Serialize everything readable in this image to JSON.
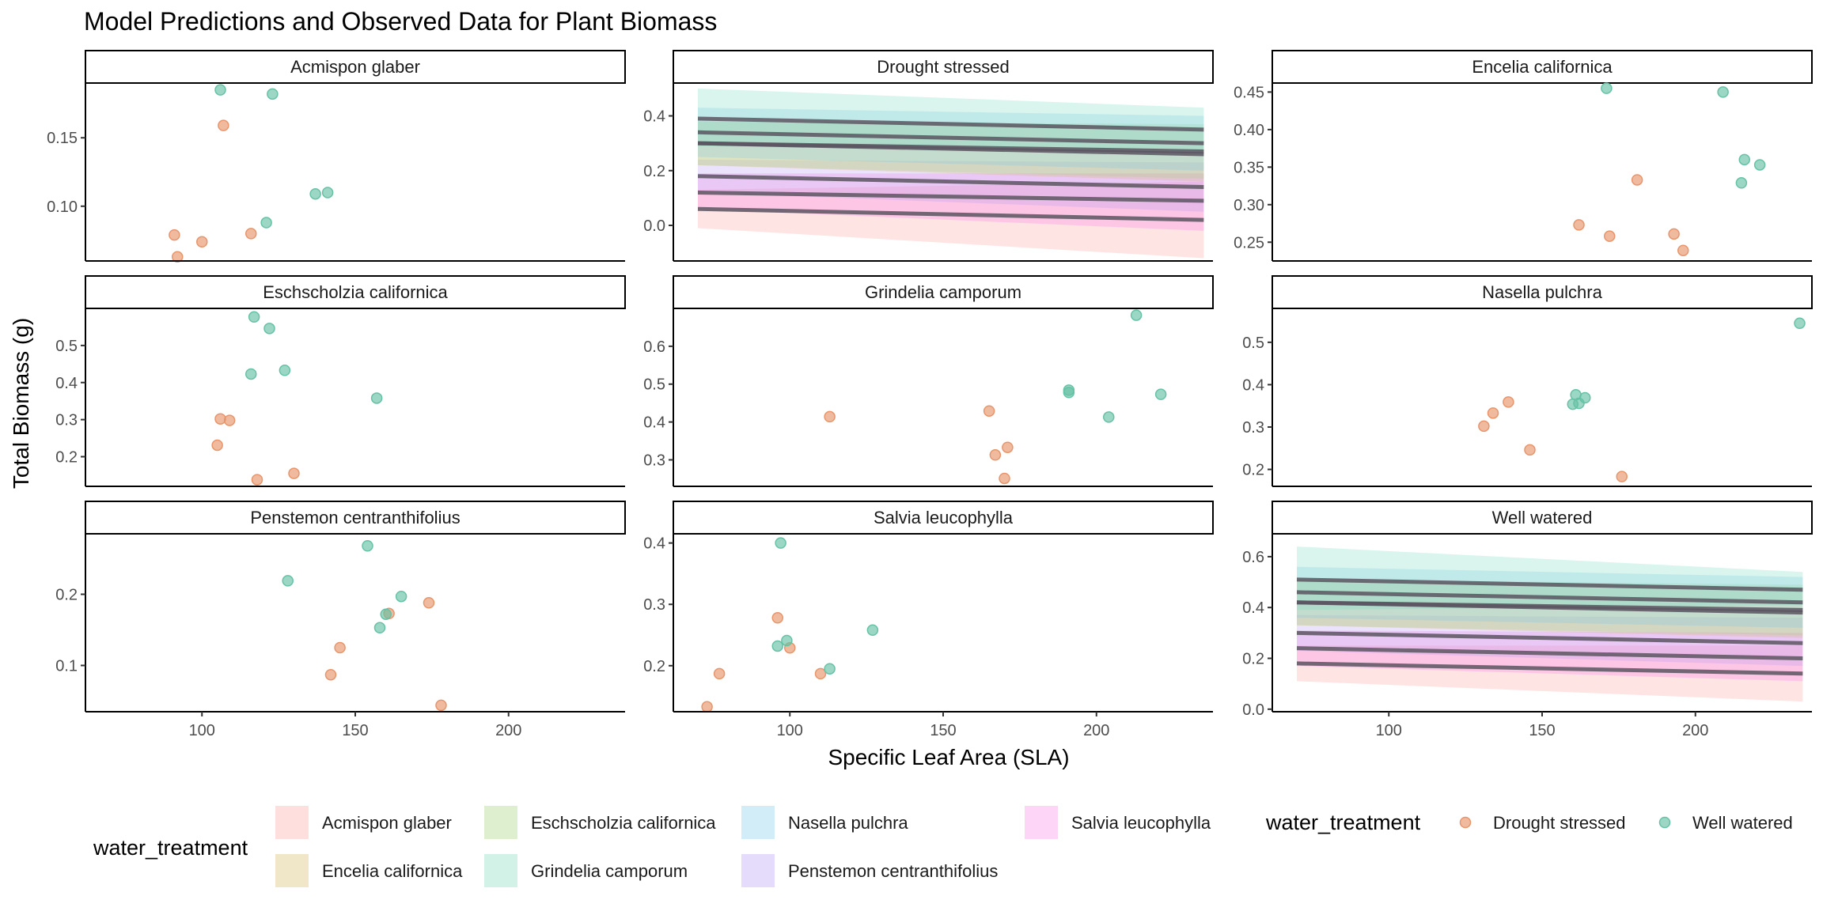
{
  "chart_data": {
    "type": "scatter",
    "title": "Model Predictions and Observed Data for Plant Biomass",
    "xlabel": "Specific Leaf Area (SLA)",
    "ylabel": "Total Biomass (g)",
    "xlim": [
      62,
      238
    ],
    "x_ticks": [
      100,
      150,
      200
    ],
    "grid": false,
    "colors": {
      "drought_point": "#E8956B",
      "well_point": "#66C2A5",
      "line": "#5a5560"
    },
    "facets": [
      {
        "label": "Acmispon glaber",
        "ylim": [
          0.06,
          0.19
        ],
        "y_ticks": [
          0.1,
          0.15
        ],
        "y_tick_labels": [
          "0.10",
          "0.15"
        ],
        "points": [
          {
            "g": "d",
            "x": 91,
            "y": 0.079
          },
          {
            "g": "d",
            "x": 92,
            "y": 0.063
          },
          {
            "g": "d",
            "x": 100,
            "y": 0.074
          },
          {
            "g": "d",
            "x": 107,
            "y": 0.159
          },
          {
            "g": "d",
            "x": 116,
            "y": 0.08
          },
          {
            "g": "w",
            "x": 106,
            "y": 0.185
          },
          {
            "g": "w",
            "x": 123,
            "y": 0.182
          },
          {
            "g": "w",
            "x": 121,
            "y": 0.088
          },
          {
            "g": "w",
            "x": 137,
            "y": 0.109
          },
          {
            "g": "w",
            "x": 141,
            "y": 0.11
          }
        ]
      },
      {
        "label": "Drought stressed",
        "ylim": [
          -0.13,
          0.52
        ],
        "y_ticks": [
          0.0,
          0.2,
          0.4
        ],
        "y_tick_labels": [
          "0.0",
          "0.2",
          "0.4"
        ],
        "x_range": [
          70,
          235
        ],
        "bands": [
          {
            "species": "Acmispon glaber",
            "fill": "#FF9E9E",
            "line": [
              0.06,
              0.02
            ],
            "lower": [
              -0.01,
              -0.12
            ],
            "upper": [
              0.13,
              0.16
            ]
          },
          {
            "species": "Salvia leucophylla",
            "fill": "#F97BE8",
            "line": [
              0.12,
              0.09
            ],
            "lower": [
              0.06,
              -0.02
            ],
            "upper": [
              0.19,
              0.19
            ]
          },
          {
            "species": "Penstemon centranthifolius",
            "fill": "#B79CF2",
            "line": [
              0.18,
              0.14
            ],
            "lower": [
              0.12,
              0.05
            ],
            "upper": [
              0.24,
              0.23
            ]
          },
          {
            "species": "Encelia californica",
            "fill": "#D4B876",
            "line": [
              0.3,
              0.26
            ],
            "lower": [
              0.22,
              0.16
            ],
            "upper": [
              0.38,
              0.36
            ]
          },
          {
            "species": "Eschscholzia californica",
            "fill": "#A8D58A",
            "line": [
              0.3,
              0.27
            ],
            "lower": [
              0.22,
              0.17
            ],
            "upper": [
              0.38,
              0.37
            ]
          },
          {
            "species": "Nasella pulchra",
            "fill": "#7FC9EE",
            "line": [
              0.34,
              0.3
            ],
            "lower": [
              0.25,
              0.2
            ],
            "upper": [
              0.43,
              0.4
            ]
          },
          {
            "species": "Grindelia camporum",
            "fill": "#7ADBC2",
            "line": [
              0.39,
              0.35
            ],
            "lower": [
              0.29,
              0.27
            ],
            "upper": [
              0.5,
              0.43
            ]
          }
        ]
      },
      {
        "label": "Encelia californica",
        "ylim": [
          0.225,
          0.462
        ],
        "y_ticks": [
          0.25,
          0.3,
          0.35,
          0.4,
          0.45
        ],
        "y_tick_labels": [
          "0.25",
          "0.30",
          "0.35",
          "0.40",
          "0.45"
        ],
        "points": [
          {
            "g": "d",
            "x": 162,
            "y": 0.273
          },
          {
            "g": "d",
            "x": 172,
            "y": 0.258
          },
          {
            "g": "d",
            "x": 181,
            "y": 0.333
          },
          {
            "g": "d",
            "x": 193,
            "y": 0.261
          },
          {
            "g": "d",
            "x": 196,
            "y": 0.239
          },
          {
            "g": "w",
            "x": 171,
            "y": 0.455
          },
          {
            "g": "w",
            "x": 209,
            "y": 0.45
          },
          {
            "g": "w",
            "x": 215,
            "y": 0.329
          },
          {
            "g": "w",
            "x": 216,
            "y": 0.36
          },
          {
            "g": "w",
            "x": 221,
            "y": 0.353
          }
        ]
      },
      {
        "label": "Eschscholzia californica",
        "ylim": [
          0.12,
          0.6
        ],
        "y_ticks": [
          0.2,
          0.3,
          0.4,
          0.5
        ],
        "y_tick_labels": [
          "0.2",
          "0.3",
          "0.4",
          "0.5"
        ],
        "points": [
          {
            "g": "d",
            "x": 105,
            "y": 0.231
          },
          {
            "g": "d",
            "x": 106,
            "y": 0.302
          },
          {
            "g": "d",
            "x": 109,
            "y": 0.298
          },
          {
            "g": "d",
            "x": 118,
            "y": 0.138
          },
          {
            "g": "d",
            "x": 130,
            "y": 0.155
          },
          {
            "g": "w",
            "x": 116,
            "y": 0.423
          },
          {
            "g": "w",
            "x": 117,
            "y": 0.577
          },
          {
            "g": "w",
            "x": 122,
            "y": 0.546
          },
          {
            "g": "w",
            "x": 127,
            "y": 0.433
          },
          {
            "g": "w",
            "x": 157,
            "y": 0.358
          }
        ]
      },
      {
        "label": "Grindelia camporum",
        "ylim": [
          0.23,
          0.7
        ],
        "y_ticks": [
          0.3,
          0.4,
          0.5,
          0.6
        ],
        "y_tick_labels": [
          "0.3",
          "0.4",
          "0.5",
          "0.6"
        ],
        "points": [
          {
            "g": "d",
            "x": 113,
            "y": 0.414
          },
          {
            "g": "d",
            "x": 165,
            "y": 0.429
          },
          {
            "g": "d",
            "x": 167,
            "y": 0.313
          },
          {
            "g": "d",
            "x": 171,
            "y": 0.333
          },
          {
            "g": "d",
            "x": 170,
            "y": 0.251
          },
          {
            "g": "w",
            "x": 191,
            "y": 0.478
          },
          {
            "g": "w",
            "x": 191,
            "y": 0.484
          },
          {
            "g": "w",
            "x": 204,
            "y": 0.413
          },
          {
            "g": "w",
            "x": 213,
            "y": 0.682
          },
          {
            "g": "w",
            "x": 221,
            "y": 0.473
          }
        ]
      },
      {
        "label": "Nasella pulchra",
        "ylim": [
          0.16,
          0.58
        ],
        "y_ticks": [
          0.2,
          0.3,
          0.4,
          0.5
        ],
        "y_tick_labels": [
          "0.2",
          "0.3",
          "0.4",
          "0.5"
        ],
        "points": [
          {
            "g": "d",
            "x": 131,
            "y": 0.302
          },
          {
            "g": "d",
            "x": 134,
            "y": 0.333
          },
          {
            "g": "d",
            "x": 139,
            "y": 0.359
          },
          {
            "g": "d",
            "x": 146,
            "y": 0.246
          },
          {
            "g": "d",
            "x": 176,
            "y": 0.183
          },
          {
            "g": "w",
            "x": 160,
            "y": 0.354
          },
          {
            "g": "w",
            "x": 161,
            "y": 0.376
          },
          {
            "g": "w",
            "x": 162,
            "y": 0.356
          },
          {
            "g": "w",
            "x": 164,
            "y": 0.369
          },
          {
            "g": "w",
            "x": 234,
            "y": 0.545
          }
        ]
      },
      {
        "label": "Penstemon centranthifolius",
        "ylim": [
          0.035,
          0.285
        ],
        "y_ticks": [
          0.1,
          0.2
        ],
        "y_tick_labels": [
          "0.1",
          "0.2"
        ],
        "points": [
          {
            "g": "d",
            "x": 142,
            "y": 0.087
          },
          {
            "g": "d",
            "x": 145,
            "y": 0.125
          },
          {
            "g": "d",
            "x": 161,
            "y": 0.173
          },
          {
            "g": "d",
            "x": 174,
            "y": 0.188
          },
          {
            "g": "d",
            "x": 178,
            "y": 0.044
          },
          {
            "g": "w",
            "x": 128,
            "y": 0.219
          },
          {
            "g": "w",
            "x": 154,
            "y": 0.268
          },
          {
            "g": "w",
            "x": 158,
            "y": 0.153
          },
          {
            "g": "w",
            "x": 160,
            "y": 0.172
          },
          {
            "g": "w",
            "x": 165,
            "y": 0.197
          }
        ]
      },
      {
        "label": "Salvia leucophylla",
        "ylim": [
          0.125,
          0.415
        ],
        "y_ticks": [
          0.2,
          0.3,
          0.4
        ],
        "y_tick_labels": [
          "0.2",
          "0.3",
          "0.4"
        ],
        "points": [
          {
            "g": "d",
            "x": 73,
            "y": 0.133
          },
          {
            "g": "d",
            "x": 77,
            "y": 0.187
          },
          {
            "g": "d",
            "x": 96,
            "y": 0.278
          },
          {
            "g": "d",
            "x": 100,
            "y": 0.229
          },
          {
            "g": "d",
            "x": 110,
            "y": 0.187
          },
          {
            "g": "w",
            "x": 96,
            "y": 0.232
          },
          {
            "g": "w",
            "x": 97,
            "y": 0.4
          },
          {
            "g": "w",
            "x": 99,
            "y": 0.241
          },
          {
            "g": "w",
            "x": 113,
            "y": 0.195
          },
          {
            "g": "w",
            "x": 127,
            "y": 0.258
          }
        ]
      },
      {
        "label": "Well watered",
        "ylim": [
          -0.01,
          0.69
        ],
        "y_ticks": [
          0.0,
          0.2,
          0.4,
          0.6
        ],
        "y_tick_labels": [
          "0.0",
          "0.2",
          "0.4",
          "0.6"
        ],
        "x_range": [
          70,
          235
        ],
        "bands": [
          {
            "species": "Acmispon glaber",
            "fill": "#FF9E9E",
            "line": [
              0.18,
              0.14
            ],
            "lower": [
              0.11,
              0.03
            ],
            "upper": [
              0.25,
              0.25
            ]
          },
          {
            "species": "Salvia leucophylla",
            "fill": "#F97BE8",
            "line": [
              0.24,
              0.2
            ],
            "lower": [
              0.17,
              0.11
            ],
            "upper": [
              0.31,
              0.3
            ]
          },
          {
            "species": "Penstemon centranthifolius",
            "fill": "#B79CF2",
            "line": [
              0.3,
              0.26
            ],
            "lower": [
              0.23,
              0.17
            ],
            "upper": [
              0.37,
              0.36
            ]
          },
          {
            "species": "Encelia californica",
            "fill": "#D4B876",
            "line": [
              0.42,
              0.38
            ],
            "lower": [
              0.33,
              0.28
            ],
            "upper": [
              0.51,
              0.48
            ]
          },
          {
            "species": "Eschscholzia californica",
            "fill": "#A8D58A",
            "line": [
              0.42,
              0.39
            ],
            "lower": [
              0.33,
              0.29
            ],
            "upper": [
              0.51,
              0.49
            ]
          },
          {
            "species": "Nasella pulchra",
            "fill": "#7FC9EE",
            "line": [
              0.46,
              0.42
            ],
            "lower": [
              0.36,
              0.32
            ],
            "upper": [
              0.56,
              0.52
            ]
          },
          {
            "species": "Grindelia camporum",
            "fill": "#7ADBC2",
            "line": [
              0.51,
              0.47
            ],
            "lower": [
              0.39,
              0.41
            ],
            "upper": [
              0.64,
              0.54
            ]
          }
        ]
      }
    ],
    "legend_fill": {
      "title": "water_treatment",
      "placement": "bottom",
      "items": [
        {
          "label": "Acmispon glaber",
          "color": "#FFDEDE"
        },
        {
          "label": "Encelia californica",
          "color": "#F0E6C8"
        },
        {
          "label": "Eschscholzia californica",
          "color": "#DDEFCF"
        },
        {
          "label": "Grindelia camporum",
          "color": "#D2F2E8"
        },
        {
          "label": "Nasella pulchra",
          "color": "#D3EDF8"
        },
        {
          "label": "Penstemon centranthifolius",
          "color": "#E4DCFA"
        },
        {
          "label": "Salvia leucophylla",
          "color": "#FDD6F7"
        }
      ]
    },
    "legend_points": {
      "title": "water_treatment",
      "placement": "bottom-right",
      "items": [
        {
          "label": "Drought stressed",
          "color": "#E8956B"
        },
        {
          "label": "Well watered",
          "color": "#66C2A5"
        }
      ]
    }
  }
}
